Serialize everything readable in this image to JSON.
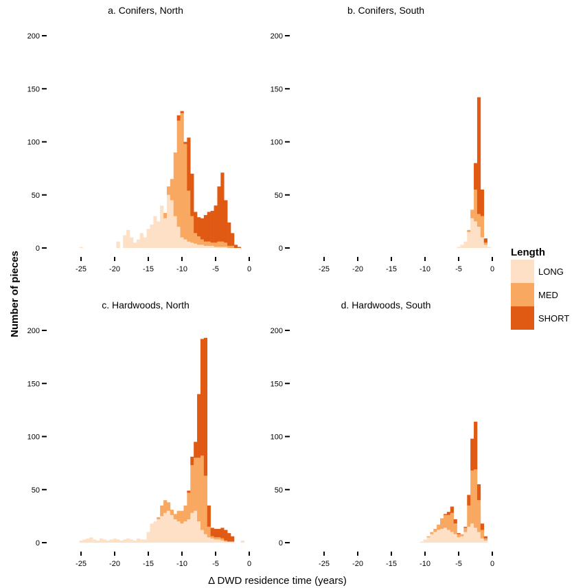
{
  "chart_data": {
    "type": "bar",
    "stacked": true,
    "xlabel": "Δ DWD residence time (years)",
    "ylabel": "Number of pieces",
    "xlim": [
      -26,
      0.5
    ],
    "ylim": [
      0,
      200
    ],
    "x_ticks": [
      -25,
      -20,
      -15,
      -10,
      -5,
      0
    ],
    "y_ticks": [
      0,
      50,
      100,
      150,
      200
    ],
    "bin_width": 0.5,
    "grid": false,
    "legend": {
      "title": "Length",
      "position": "right",
      "entries": [
        {
          "label": "LONG",
          "color": "#fde0c5"
        },
        {
          "label": "MED",
          "color": "#f8a860"
        },
        {
          "label": "SHORT",
          "color": "#e05a14"
        }
      ]
    },
    "panels": [
      {
        "title": "a. Conifers, North",
        "x": [
          -25,
          -19.5,
          -18.5,
          -18,
          -17.5,
          -17,
          -16.5,
          -16,
          -15.5,
          -15,
          -14.5,
          -14,
          -13.5,
          -13,
          -12.5,
          -12,
          -11.5,
          -11,
          -10.5,
          -10,
          -9.5,
          -9,
          -8.5,
          -8,
          -7.5,
          -7,
          -6.5,
          -6,
          -5.5,
          -5,
          -4.5,
          -4,
          -3.5,
          -3,
          -2.5,
          -2,
          -1.5
        ],
        "series": [
          {
            "name": "LONG",
            "values": [
              1,
              6,
              12,
              17,
              10,
              5,
              8,
              14,
              10,
              18,
              22,
              30,
              25,
              40,
              28,
              50,
              45,
              30,
              20,
              10,
              8,
              6,
              5,
              4,
              3,
              3,
              2,
              2,
              2,
              1,
              1,
              1,
              1,
              0,
              0,
              0,
              0
            ]
          },
          {
            "name": "MED",
            "values": [
              0,
              0,
              0,
              0,
              0,
              0,
              0,
              0,
              0,
              0,
              0,
              0,
              0,
              0,
              5,
              8,
              20,
              60,
              100,
              117,
              90,
              48,
              25,
              10,
              8,
              5,
              4,
              4,
              3,
              4,
              5,
              5,
              4,
              2,
              2,
              0,
              0
            ]
          },
          {
            "name": "SHORT",
            "values": [
              0,
              0,
              0,
              0,
              0,
              0,
              0,
              0,
              0,
              0,
              0,
              0,
              0,
              0,
              0,
              0,
              0,
              0,
              5,
              2,
              2,
              50,
              40,
              20,
              18,
              20,
              25,
              28,
              30,
              35,
              52,
              65,
              40,
              22,
              12,
              3,
              1
            ]
          }
        ]
      },
      {
        "title": "b. Conifers, South",
        "x": [
          -5,
          -4.5,
          -4,
          -3.5,
          -3,
          -2.5,
          -2,
          -1.5,
          -1,
          -0.5
        ],
        "series": [
          {
            "name": "LONG",
            "values": [
              1,
              3,
              6,
              15,
              28,
              25,
              20,
              10,
              3,
              1
            ]
          },
          {
            "name": "MED",
            "values": [
              0,
              0,
              0,
              2,
              8,
              30,
              12,
              20,
              2,
              0
            ]
          },
          {
            "name": "SHORT",
            "values": [
              0,
              0,
              0,
              0,
              0,
              25,
              110,
              25,
              4,
              0
            ]
          }
        ]
      },
      {
        "title": "c. Hardwoods, North",
        "x": [
          -25,
          -24.5,
          -24,
          -23.5,
          -23,
          -22.5,
          -22,
          -21.5,
          -21,
          -20.5,
          -20,
          -19.5,
          -19,
          -18.5,
          -18,
          -17.5,
          -17,
          -16.5,
          -16,
          -15.5,
          -15,
          -14.5,
          -14,
          -13.5,
          -13,
          -12.5,
          -12,
          -11.5,
          -11,
          -10.5,
          -10,
          -9.5,
          -9,
          -8.5,
          -8,
          -7.5,
          -7,
          -6.5,
          -6,
          -5.5,
          -5,
          -4.5,
          -4,
          -3.5,
          -3,
          -2.5,
          -1
        ],
        "series": [
          {
            "name": "LONG",
            "values": [
              2,
              3,
              4,
              5,
              3,
              2,
              4,
              3,
              2,
              3,
              4,
              3,
              2,
              3,
              4,
              3,
              2,
              4,
              3,
              3,
              10,
              18,
              20,
              22,
              25,
              28,
              30,
              26,
              22,
              20,
              18,
              20,
              22,
              28,
              30,
              20,
              12,
              8,
              5,
              4,
              3,
              3,
              2,
              1,
              1,
              1,
              2
            ]
          },
          {
            "name": "MED",
            "values": [
              0,
              0,
              0,
              0,
              0,
              0,
              0,
              0,
              0,
              0,
              0,
              0,
              0,
              0,
              0,
              0,
              0,
              0,
              0,
              0,
              0,
              0,
              0,
              2,
              10,
              12,
              8,
              5,
              5,
              10,
              12,
              15,
              25,
              45,
              50,
              60,
              70,
              55,
              10,
              2,
              2,
              2,
              2,
              1,
              0,
              0,
              0
            ]
          },
          {
            "name": "SHORT",
            "values": [
              0,
              0,
              0,
              0,
              0,
              0,
              0,
              0,
              0,
              0,
              0,
              0,
              0,
              0,
              0,
              0,
              0,
              0,
              0,
              0,
              0,
              0,
              0,
              0,
              0,
              0,
              0,
              0,
              0,
              0,
              0,
              0,
              2,
              8,
              15,
              60,
              110,
              130,
              20,
              8,
              8,
              8,
              10,
              10,
              8,
              5,
              0
            ]
          }
        ]
      },
      {
        "title": "d. Hardwoods, South",
        "x": [
          -10.5,
          -10,
          -9.5,
          -9,
          -8.5,
          -8,
          -7.5,
          -7,
          -6.5,
          -6,
          -5.5,
          -5,
          -4.5,
          -4,
          -3.5,
          -3,
          -2.5,
          -2,
          -1.5,
          -1
        ],
        "series": [
          {
            "name": "LONG",
            "values": [
              1,
              3,
              5,
              8,
              10,
              12,
              13,
              14,
              12,
              10,
              8,
              5,
              6,
              10,
              15,
              18,
              14,
              10,
              4,
              2
            ]
          },
          {
            "name": "MED",
            "values": [
              0,
              0,
              1,
              2,
              3,
              5,
              10,
              12,
              14,
              18,
              10,
              3,
              2,
              4,
              20,
              50,
              55,
              30,
              8,
              2
            ]
          },
          {
            "name": "SHORT",
            "values": [
              0,
              0,
              0,
              0,
              0,
              0,
              0,
              1,
              3,
              6,
              4,
              1,
              0,
              1,
              10,
              30,
              45,
              15,
              6,
              2
            ]
          }
        ]
      }
    ]
  }
}
